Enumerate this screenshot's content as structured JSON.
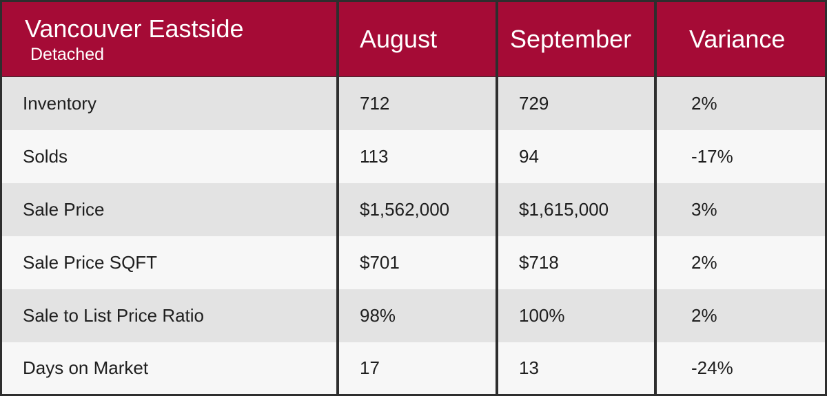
{
  "table": {
    "header": {
      "title": "Vancouver Eastside",
      "subtitle": "Detached",
      "columns": [
        "August",
        "September",
        "Variance"
      ]
    },
    "rows": [
      [
        "Inventory",
        "712",
        "729",
        "2%"
      ],
      [
        "Solds",
        "113",
        "94",
        "-17%"
      ],
      [
        "Sale Price",
        "$1,562,000",
        "$1,615,000",
        "3%"
      ],
      [
        "Sale Price SQFT",
        "$701",
        "$718",
        "2%"
      ],
      [
        "Sale to List Price Ratio",
        "98%",
        "100%",
        "2%"
      ],
      [
        "Days on Market",
        "17",
        "13",
        "-24%"
      ]
    ]
  }
}
